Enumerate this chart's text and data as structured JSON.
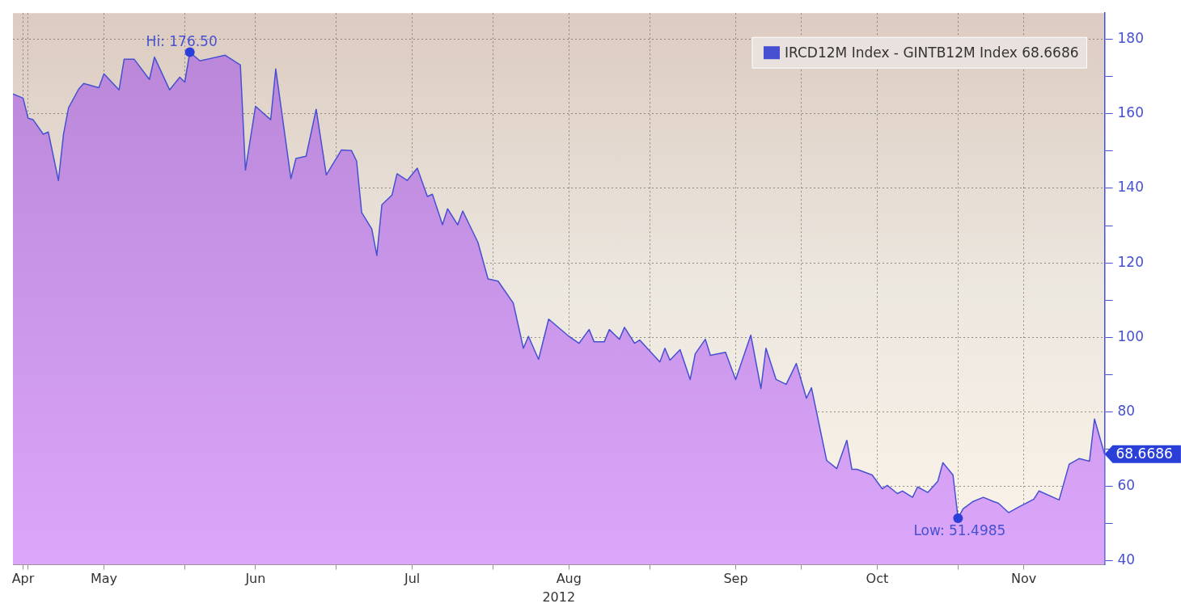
{
  "chart_data": {
    "type": "area",
    "xlabel": "2012",
    "x": [
      "2012-04-28",
      "2012-04-30",
      "2012-05-01",
      "2012-05-02",
      "2012-05-04",
      "2012-05-05",
      "2012-05-07",
      "2012-05-08",
      "2012-05-09",
      "2012-05-11",
      "2012-05-12",
      "2012-05-15",
      "2012-05-16",
      "2012-05-19",
      "2012-05-20",
      "2012-05-22",
      "2012-05-25",
      "2012-05-26",
      "2012-05-29",
      "2012-05-31",
      "2012-06-01",
      "2012-06-02",
      "2012-06-04",
      "2012-06-09",
      "2012-06-12",
      "2012-06-13",
      "2012-06-15",
      "2012-06-18",
      "2012-06-19",
      "2012-06-22",
      "2012-06-23",
      "2012-06-25",
      "2012-06-27",
      "2012-06-29",
      "2012-07-02",
      "2012-07-04",
      "2012-07-05",
      "2012-07-06",
      "2012-07-08",
      "2012-07-09",
      "2012-07-10",
      "2012-07-12",
      "2012-07-13",
      "2012-07-15",
      "2012-07-17",
      "2012-07-19",
      "2012-07-20",
      "2012-07-22",
      "2012-07-23",
      "2012-07-25",
      "2012-07-26",
      "2012-07-29",
      "2012-07-31",
      "2012-08-02",
      "2012-08-05",
      "2012-08-07",
      "2012-08-08",
      "2012-08-10",
      "2012-08-12",
      "2012-08-16",
      "2012-08-18",
      "2012-08-20",
      "2012-08-21",
      "2012-08-23",
      "2012-08-24",
      "2012-08-26",
      "2012-08-27",
      "2012-08-29",
      "2012-08-30",
      "2012-09-03",
      "2012-09-04",
      "2012-09-05",
      "2012-09-07",
      "2012-09-09",
      "2012-09-10",
      "2012-09-12",
      "2012-09-13",
      "2012-09-16",
      "2012-09-17",
      "2012-09-18",
      "2012-09-21",
      "2012-09-23",
      "2012-09-24",
      "2012-09-26",
      "2012-09-28",
      "2012-09-30",
      "2012-10-02",
      "2012-10-03",
      "2012-10-06",
      "2012-10-08",
      "2012-10-10",
      "2012-10-11",
      "2012-10-12",
      "2012-10-15",
      "2012-10-17",
      "2012-10-18",
      "2012-10-20",
      "2012-10-21",
      "2012-10-23",
      "2012-10-24",
      "2012-10-26",
      "2012-10-28",
      "2012-10-29",
      "2012-10-31",
      "2012-11-01",
      "2012-11-02",
      "2012-11-04",
      "2012-11-06",
      "2012-11-08",
      "2012-11-09",
      "2012-11-11",
      "2012-11-13",
      "2012-11-16",
      "2012-11-17",
      "2012-11-21",
      "2012-11-23",
      "2012-11-25",
      "2012-11-27",
      "2012-11-28",
      "2012-11-30"
    ],
    "series": [
      {
        "name": "IRCD12M Index - GINTB12M Index 68.6686",
        "color": "#4650d0",
        "values": [
          165.3,
          164.2,
          158.8,
          158.4,
          154.5,
          155.1,
          142.1,
          154.5,
          161.6,
          166.6,
          168.1,
          167.0,
          170.7,
          166.4,
          174.6,
          174.6,
          169.2,
          175.2,
          166.4,
          169.8,
          168.5,
          176.5,
          174.2,
          175.7,
          173.1,
          144.9,
          162.0,
          158.4,
          172.0,
          142.6,
          148.0,
          148.6,
          161.2,
          143.6,
          150.3,
          150.1,
          147.3,
          133.5,
          129.1,
          122.0,
          135.6,
          138.2,
          143.9,
          142.1,
          145.4,
          137.8,
          138.4,
          130.2,
          134.5,
          130.2,
          133.9,
          125.5,
          115.7,
          115.1,
          109.2,
          97.1,
          100.3,
          94.1,
          104.9,
          100.3,
          98.4,
          102.1,
          98.8,
          98.8,
          102.1,
          99.5,
          102.7,
          98.4,
          99.3,
          93.4,
          97.1,
          93.9,
          96.7,
          88.7,
          95.6,
          99.5,
          95.2,
          96.0,
          92.3,
          88.7,
          100.6,
          86.3,
          97.1,
          88.7,
          87.4,
          93.0,
          83.7,
          86.5,
          67.0,
          64.8,
          72.4,
          64.6,
          64.6,
          63.1,
          59.4,
          60.3,
          58.1,
          58.8,
          57.1,
          59.9,
          58.4,
          61.4,
          66.4,
          63.1,
          51.4985,
          54.0,
          56.0,
          57.1,
          56.0,
          55.5,
          53.0,
          54.5,
          56.6,
          58.8,
          56.4,
          66.0,
          67.5,
          66.8,
          78.1,
          68.6686
        ]
      }
    ],
    "xlim": [
      "2012-04-28",
      "2012-11-30"
    ],
    "xticks": [
      {
        "value": "2012-04-30",
        "label": "Apr"
      },
      {
        "value": "2012-05-01",
        "label": null
      },
      {
        "value": "2012-05-16",
        "label": "May"
      },
      {
        "value": "2012-06-01",
        "label": null
      },
      {
        "value": "2012-06-15",
        "label": "Jun"
      },
      {
        "value": "2012-07-01",
        "label": null
      },
      {
        "value": "2012-07-16",
        "label": "Jul"
      },
      {
        "value": "2012-08-01",
        "label": null
      },
      {
        "value": "2012-08-16",
        "label": "Aug"
      },
      {
        "value": "2012-09-01",
        "label": null
      },
      {
        "value": "2012-09-18",
        "label": "Sep"
      },
      {
        "value": "2012-10-01",
        "label": null
      },
      {
        "value": "2012-10-16",
        "label": "Oct"
      },
      {
        "value": "2012-11-01",
        "label": null
      },
      {
        "value": "2012-11-14",
        "label": "Nov"
      }
    ],
    "ylim": [
      39,
      187
    ],
    "yticks": [
      40,
      {
        "value": 50,
        "label": null
      },
      60,
      {
        "value": 70,
        "label": null
      },
      80,
      {
        "value": 90,
        "label": null
      },
      100,
      {
        "value": 110,
        "label": null
      },
      120,
      {
        "value": 130,
        "label": null
      },
      140,
      {
        "value": 150,
        "label": null
      },
      160,
      {
        "value": 170,
        "label": null
      },
      180
    ],
    "annotations": [
      {
        "text": "Hi: 176.50",
        "x": "2012-06-02",
        "y": 176.5
      },
      {
        "text": "Low: 51.4985",
        "x": "2012-11-01",
        "y": 51.4985
      },
      {
        "text": "68.6686",
        "x": "2012-11-30",
        "y": 68.6686
      }
    ],
    "grid": true,
    "legend": "top right",
    "marker": "none",
    "line_style": "solid"
  }
}
